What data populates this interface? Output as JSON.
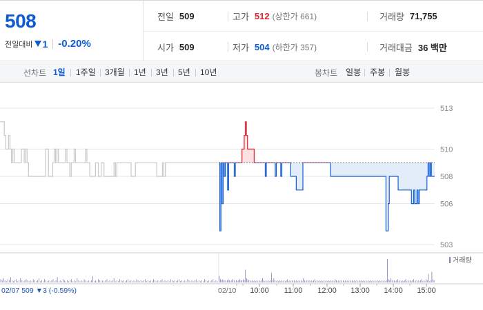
{
  "header": {
    "current_price": "508",
    "change_label": "전일대비",
    "change_value": "1",
    "change_pct": "-0.20%",
    "quotes": {
      "prev_close": {
        "label": "전일",
        "value": "509"
      },
      "high": {
        "label": "고가",
        "value": "512",
        "sub": "(상한가 661)"
      },
      "volume": {
        "label": "거래량",
        "value": "71,755"
      },
      "open": {
        "label": "시가",
        "value": "509"
      },
      "low": {
        "label": "저가",
        "value": "504",
        "sub": "(하한가 357)"
      },
      "amount": {
        "label": "거래대금",
        "value": "36 백만"
      }
    }
  },
  "toolbar": {
    "line_title": "선차트",
    "line_tabs": [
      "1일",
      "1주일",
      "3개월",
      "1년",
      "3년",
      "5년",
      "10년"
    ],
    "active_line_tab": "1일",
    "candle_title": "봉차트",
    "candle_tabs": [
      "일봉",
      "주봉",
      "월봉"
    ]
  },
  "colors": {
    "up": "#e0202a",
    "down": "#0d5bd1",
    "prev_day_line": "#c8c8c8",
    "volume": "#8a78b8"
  },
  "chart_data": {
    "type": "line",
    "y_ticks": [
      "513",
      "510",
      "508",
      "506",
      "503"
    ],
    "ylim": [
      503,
      513
    ],
    "baseline": 509,
    "volume_legend": "거래량",
    "footer_label": "02/07 509 ▼3 (-0.59%)",
    "day_label": "02/10",
    "time_ticks": [
      "10:00",
      "11:00",
      "12:00",
      "13:00",
      "14:00",
      "15:00"
    ],
    "prev_day_series": [
      512,
      512,
      512,
      511,
      510,
      510,
      511,
      510,
      509,
      510,
      509,
      509,
      509,
      509,
      509,
      510,
      510,
      509,
      510,
      509,
      508,
      508,
      508,
      508,
      508,
      508,
      508,
      508,
      508,
      508,
      508,
      508,
      510,
      510,
      508,
      508,
      508,
      509,
      510,
      509,
      510,
      509,
      509,
      509,
      509,
      509,
      510,
      509,
      509,
      508,
      509,
      509,
      510,
      509,
      509,
      509,
      509,
      509,
      509,
      509,
      510,
      509,
      509,
      508,
      508,
      508,
      508,
      509,
      509,
      508,
      508,
      509,
      509,
      508,
      508,
      508,
      508,
      508,
      508,
      508,
      509,
      508,
      509,
      509,
      509,
      509,
      509,
      509,
      509,
      509,
      509,
      509,
      508,
      508,
      508,
      509,
      509,
      509,
      509,
      509,
      509,
      509,
      509,
      509,
      509,
      509,
      509,
      509,
      509,
      509,
      508,
      508,
      508,
      508,
      509,
      508,
      509,
      509,
      509,
      509,
      509,
      509,
      509,
      509,
      509,
      509,
      509,
      509,
      509,
      509,
      509,
      509,
      509,
      509,
      509,
      509,
      509,
      509,
      509,
      509,
      509,
      509,
      509,
      509,
      509,
      509,
      509,
      509,
      509,
      509,
      509,
      509,
      509,
      509
    ],
    "today_series": [
      509,
      504,
      509,
      506,
      509,
      508,
      509,
      509,
      507,
      509,
      509,
      509,
      509,
      509,
      508,
      509,
      509,
      509,
      509,
      509,
      509,
      510,
      510,
      511,
      512,
      511,
      510,
      510,
      510,
      510,
      510,
      510,
      509,
      509,
      509,
      509,
      509,
      509,
      509,
      509,
      509,
      509,
      508,
      509,
      509,
      509,
      509,
      509,
      509,
      509,
      509,
      508,
      509,
      509,
      509,
      509,
      508,
      509,
      509,
      509,
      509,
      509,
      509,
      509,
      509,
      508,
      508,
      508,
      508,
      508,
      507,
      507,
      507,
      507,
      507,
      507,
      509,
      509,
      509,
      509,
      509,
      509,
      509,
      509,
      509,
      509,
      509,
      509,
      509,
      509,
      509,
      509,
      509,
      509,
      509,
      509,
      509,
      509,
      509,
      509,
      509,
      508,
      508,
      508,
      508,
      508,
      508,
      508,
      508,
      508,
      508,
      508,
      508,
      508,
      508,
      508,
      508,
      508,
      508,
      508,
      508,
      508,
      508,
      508,
      508,
      508,
      508,
      508,
      508,
      508,
      508,
      508,
      508,
      508,
      508,
      508,
      508,
      508,
      508,
      508,
      508,
      508,
      508,
      508,
      508,
      508,
      508,
      508,
      508,
      508,
      508,
      504,
      504,
      506,
      508,
      508,
      508,
      508,
      508,
      508,
      508,
      508,
      507,
      507,
      507,
      507,
      507,
      507,
      507,
      507,
      507,
      507,
      507,
      507,
      506,
      506,
      507,
      506,
      506,
      507,
      506,
      507,
      507,
      507,
      507,
      507,
      507,
      507,
      508,
      509,
      508,
      509,
      508,
      508,
      508,
      508
    ],
    "prev_day_volume": [
      3,
      2,
      4,
      2,
      1,
      3,
      2,
      5,
      2,
      1,
      2,
      3,
      1,
      2,
      4,
      2,
      1,
      2,
      3,
      2,
      1,
      2,
      1,
      3,
      2,
      1,
      2,
      4,
      1,
      2,
      1,
      3,
      2,
      1,
      2,
      1,
      2,
      3,
      1,
      2,
      5,
      1,
      2,
      1,
      3,
      2,
      1,
      2,
      1,
      2,
      3,
      1,
      2,
      1,
      4,
      2,
      1,
      2,
      1,
      3,
      2,
      1,
      2,
      1,
      2,
      6,
      1,
      2,
      1,
      3,
      2,
      1,
      2,
      1,
      2,
      3,
      1,
      2,
      1,
      2,
      4,
      1,
      2,
      1,
      3,
      2,
      1,
      2,
      1,
      2,
      3,
      1,
      2,
      1,
      2,
      1,
      3,
      2,
      1,
      2,
      1,
      2,
      3,
      1,
      2,
      1,
      2,
      1,
      3,
      2,
      1,
      2,
      1,
      2,
      3,
      1,
      2,
      1,
      2,
      1,
      3,
      2,
      1,
      2,
      1,
      2,
      3,
      1,
      2,
      1,
      2,
      1,
      3,
      2,
      1,
      2,
      1,
      2,
      3,
      1,
      2,
      1,
      2,
      1,
      3,
      2,
      1,
      2,
      1,
      2,
      3,
      1,
      2,
      1
    ],
    "today_volume": [
      6,
      3,
      2,
      3,
      2,
      2,
      1,
      2,
      3,
      2,
      1,
      2,
      3,
      2,
      1,
      2,
      1,
      2,
      3,
      2,
      2,
      3,
      2,
      12,
      4,
      3,
      2,
      2,
      1,
      2,
      1,
      2,
      1,
      2,
      1,
      2,
      1,
      2,
      4,
      2,
      1,
      2,
      1,
      2,
      1,
      2,
      9,
      2,
      4,
      2,
      1,
      2,
      1,
      2,
      1,
      2,
      1,
      2,
      1,
      2,
      3,
      1,
      2,
      1,
      2,
      1,
      2,
      1,
      2,
      1,
      2,
      1,
      2,
      1,
      4,
      2,
      1,
      2,
      1,
      2,
      1,
      2,
      1,
      2,
      3,
      1,
      2,
      1,
      2,
      1,
      2,
      1,
      2,
      1,
      2,
      1,
      2,
      1,
      2,
      1,
      2,
      1,
      3,
      2,
      1,
      2,
      1,
      2,
      1,
      2,
      1,
      2,
      1,
      2,
      1,
      2,
      1,
      2,
      1,
      2,
      1,
      2,
      1,
      2,
      1,
      2,
      1,
      2,
      1,
      2,
      1,
      2,
      1,
      2,
      1,
      2,
      1,
      2,
      1,
      2,
      1,
      2,
      1,
      2,
      1,
      2,
      1,
      2,
      22,
      3,
      2,
      4,
      2,
      1,
      2,
      1,
      2,
      3,
      1,
      2,
      1,
      2,
      1,
      2,
      3,
      1,
      2,
      1,
      2,
      1,
      2,
      3,
      1,
      2,
      1,
      2,
      1,
      2,
      3,
      1,
      2,
      1,
      3,
      2,
      8,
      1,
      2,
      10,
      3,
      2
    ]
  }
}
